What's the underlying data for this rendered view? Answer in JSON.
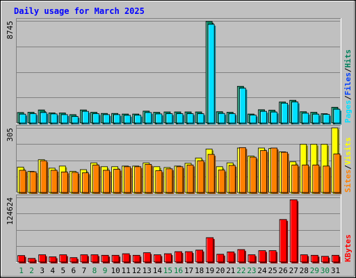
{
  "window": {
    "title": "Daily usage for March 2025"
  },
  "colors": {
    "hits": "#00805c",
    "files": "#0040ff",
    "pages": "#00e0ff",
    "visits": "#ffff00",
    "sites": "#ff8000",
    "kbytes": "#ff0000",
    "weekend_day_label": "#008040",
    "weekday_day_label": "#000000"
  },
  "chart_data": [
    {
      "id": "hits_files_pages",
      "type": "bar",
      "y_tick_label": "8745",
      "ylim": [
        0,
        8745
      ],
      "side_label": [
        {
          "text": "Pages",
          "color": "#00e0ff"
        },
        {
          "text": "/",
          "color": "#000000"
        },
        {
          "text": "Files",
          "color": "#0040ff"
        },
        {
          "text": "/",
          "color": "#000000"
        },
        {
          "text": "Hits",
          "color": "#00805c"
        }
      ],
      "categories": [
        "1",
        "2",
        "3",
        "4",
        "5",
        "6",
        "7",
        "8",
        "9",
        "10",
        "11",
        "12",
        "13",
        "14",
        "15",
        "16",
        "17",
        "18",
        "19",
        "20",
        "21",
        "22",
        "23",
        "24",
        "25",
        "26",
        "27",
        "28",
        "29",
        "30",
        "31"
      ],
      "series": [
        {
          "name": "Hits",
          "values": [
            900,
            920,
            1120,
            870,
            860,
            720,
            1120,
            920,
            820,
            820,
            770,
            770,
            1020,
            920,
            950,
            950,
            950,
            950,
            8700,
            970,
            920,
            3140,
            770,
            1140,
            1100,
            1800,
            1950,
            970,
            920,
            800,
            1350
          ]
        },
        {
          "name": "Pages",
          "values": [
            760,
            800,
            900,
            780,
            720,
            560,
            1000,
            800,
            720,
            720,
            660,
            670,
            900,
            780,
            800,
            800,
            800,
            800,
            8450,
            820,
            800,
            2980,
            680,
            1000,
            940,
            1700,
            1800,
            840,
            760,
            740,
            1180
          ]
        }
      ]
    },
    {
      "id": "visits_sites",
      "type": "bar",
      "y_tick_label": "305",
      "ylim": [
        0,
        305
      ],
      "side_label": [
        {
          "text": "Sites",
          "color": "#ff8000"
        },
        {
          "text": "/",
          "color": "#000000"
        },
        {
          "text": "Visits",
          "color": "#ffff00"
        }
      ],
      "categories": [
        "1",
        "2",
        "3",
        "4",
        "5",
        "6",
        "7",
        "8",
        "9",
        "10",
        "11",
        "12",
        "13",
        "14",
        "15",
        "16",
        "17",
        "18",
        "19",
        "20",
        "21",
        "22",
        "23",
        "24",
        "25",
        "26",
        "27",
        "28",
        "29",
        "30",
        "31"
      ],
      "series": [
        {
          "name": "Visits",
          "values": [
            120,
            100,
            155,
            115,
            125,
            100,
            108,
            140,
            122,
            122,
            125,
            125,
            140,
            122,
            118,
            125,
            138,
            163,
            205,
            122,
            140,
            210,
            172,
            210,
            208,
            192,
            145,
            228,
            228,
            228,
            305
          ]
        },
        {
          "name": "Sites",
          "values": [
            105,
            98,
            150,
            105,
            97,
            95,
            93,
            130,
            105,
            110,
            122,
            122,
            133,
            103,
            112,
            122,
            130,
            150,
            180,
            106,
            128,
            212,
            167,
            198,
            210,
            190,
            130,
            130,
            130,
            125,
            182
          ]
        }
      ]
    },
    {
      "id": "kbytes",
      "type": "bar",
      "y_tick_label": "124624",
      "ylim": [
        0,
        124624
      ],
      "side_label": [
        {
          "text": "KBytes",
          "color": "#ff0000"
        }
      ],
      "categories": [
        "1",
        "2",
        "3",
        "4",
        "5",
        "6",
        "7",
        "8",
        "9",
        "10",
        "11",
        "12",
        "13",
        "14",
        "15",
        "16",
        "17",
        "18",
        "19",
        "20",
        "21",
        "22",
        "23",
        "24",
        "25",
        "26",
        "27",
        "28",
        "29",
        "30",
        "31"
      ],
      "series": [
        {
          "name": "KBytes",
          "values": [
            12500,
            7000,
            14000,
            10000,
            14000,
            8500,
            14000,
            14000,
            13000,
            13000,
            16000,
            13000,
            18000,
            14000,
            16000,
            20000,
            20000,
            23000,
            47000,
            15000,
            19500,
            24000,
            14000,
            22000,
            22000,
            82000,
            120000,
            14000,
            13000,
            11000,
            13000
          ]
        }
      ],
      "x_day_labels": [
        {
          "text": "1",
          "color": "#008040"
        },
        {
          "text": "2",
          "color": "#008040"
        },
        {
          "text": "3",
          "color": "#000000"
        },
        {
          "text": "4",
          "color": "#000000"
        },
        {
          "text": "5",
          "color": "#000000"
        },
        {
          "text": "6",
          "color": "#000000"
        },
        {
          "text": "7",
          "color": "#000000"
        },
        {
          "text": "8",
          "color": "#008040"
        },
        {
          "text": "9",
          "color": "#008040"
        },
        {
          "text": "10",
          "color": "#000000"
        },
        {
          "text": "11",
          "color": "#000000"
        },
        {
          "text": "12",
          "color": "#000000"
        },
        {
          "text": "13",
          "color": "#000000"
        },
        {
          "text": "14",
          "color": "#000000"
        },
        {
          "text": "15",
          "color": "#008040"
        },
        {
          "text": "16",
          "color": "#008040"
        },
        {
          "text": "17",
          "color": "#000000"
        },
        {
          "text": "18",
          "color": "#000000"
        },
        {
          "text": "19",
          "color": "#000000"
        },
        {
          "text": "20",
          "color": "#000000"
        },
        {
          "text": "21",
          "color": "#000000"
        },
        {
          "text": "22",
          "color": "#008040"
        },
        {
          "text": "23",
          "color": "#008040"
        },
        {
          "text": "24",
          "color": "#000000"
        },
        {
          "text": "25",
          "color": "#000000"
        },
        {
          "text": "26",
          "color": "#000000"
        },
        {
          "text": "27",
          "color": "#000000"
        },
        {
          "text": "28",
          "color": "#000000"
        },
        {
          "text": "29",
          "color": "#008040"
        },
        {
          "text": "30",
          "color": "#008040"
        },
        {
          "text": "31",
          "color": "#000000"
        }
      ]
    }
  ]
}
